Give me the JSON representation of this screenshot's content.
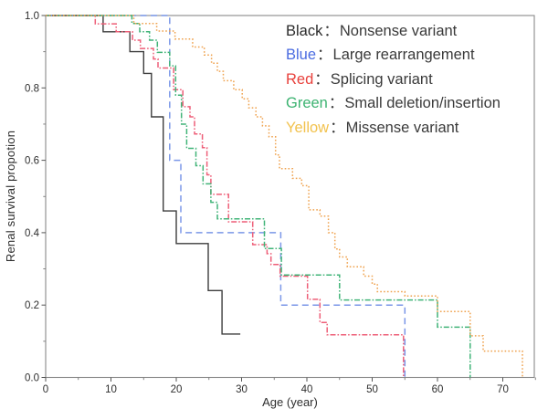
{
  "chart_data": {
    "type": "line",
    "subtype": "kaplan-meier-step",
    "title": "",
    "xlabel": "Age (year)",
    "ylabel": "Renal survival propotion",
    "xlim": [
      0,
      75
    ],
    "ylim": [
      0.0,
      1.0
    ],
    "x_ticks": [
      0,
      10,
      20,
      30,
      40,
      50,
      60,
      70
    ],
    "x_minor_step": 5,
    "y_ticks": [
      "0.0",
      "0.2",
      "0.4",
      "0.6",
      "0.8",
      "1.0"
    ],
    "y_minor_step": 0.1,
    "grid": false,
    "legend_position": "top-right-inside",
    "frame_color": "#8a8a8a",
    "tick_label_color": "#2e2e2e",
    "series": [
      {
        "name": "Nonsense variant",
        "color_name": "Black",
        "color": "#3d3d3d",
        "line_style": "solid",
        "steps": [
          [
            8.8,
            0.955
          ],
          [
            12.9,
            0.9
          ],
          [
            15.0,
            0.84
          ],
          [
            16.2,
            0.72
          ],
          [
            18.0,
            0.46
          ],
          [
            20.0,
            0.37
          ],
          [
            24.9,
            0.24
          ],
          [
            27.0,
            0.12
          ]
        ],
        "end_age": 29.8,
        "end_survival": 0.12
      },
      {
        "name": "Large rearrangement",
        "color_name": "Blue",
        "color": "#7b97e8",
        "line_style": "dashed",
        "steps": [
          [
            19.0,
            0.6
          ],
          [
            20.7,
            0.4
          ],
          [
            36.0,
            0.2
          ],
          [
            55.0,
            0.0
          ]
        ],
        "end_age": 55.0,
        "end_survival": 0.0
      },
      {
        "name": "Splicing variant",
        "color_name": "Red",
        "color": "#ee5f78",
        "line_style": "dash-dot",
        "steps": [
          [
            7.6,
            0.977
          ],
          [
            10.8,
            0.955
          ],
          [
            13.3,
            0.932
          ],
          [
            14.5,
            0.909
          ],
          [
            16.5,
            0.88
          ],
          [
            17.2,
            0.855
          ],
          [
            19.6,
            0.795
          ],
          [
            21.0,
            0.748
          ],
          [
            22.1,
            0.72
          ],
          [
            22.8,
            0.673
          ],
          [
            24.0,
            0.635
          ],
          [
            24.7,
            0.56
          ],
          [
            25.3,
            0.506
          ],
          [
            28.0,
            0.43
          ],
          [
            31.7,
            0.367
          ],
          [
            33.9,
            0.342
          ],
          [
            34.5,
            0.312
          ],
          [
            35.9,
            0.28
          ],
          [
            40.1,
            0.216
          ],
          [
            42.0,
            0.152
          ],
          [
            43.1,
            0.118
          ],
          [
            54.8,
            0.0
          ]
        ],
        "end_age": 54.8,
        "end_survival": 0.0
      },
      {
        "name": "Small deletion/insertion",
        "color_name": "Green",
        "color": "#41b478",
        "line_style": "dash-dot",
        "steps": [
          [
            13.2,
            0.978
          ],
          [
            14.4,
            0.955
          ],
          [
            15.9,
            0.932
          ],
          [
            17.1,
            0.898
          ],
          [
            19.0,
            0.861
          ],
          [
            19.9,
            0.78
          ],
          [
            20.8,
            0.7
          ],
          [
            21.6,
            0.633
          ],
          [
            23.0,
            0.585
          ],
          [
            24.1,
            0.535
          ],
          [
            25.3,
            0.484
          ],
          [
            26.3,
            0.438
          ],
          [
            33.5,
            0.356
          ],
          [
            36.1,
            0.283
          ],
          [
            45.0,
            0.214
          ],
          [
            60.0,
            0.139
          ],
          [
            65.0,
            0.0
          ]
        ],
        "end_age": 65.0,
        "end_survival": 0.0
      },
      {
        "name": "Missense variant",
        "color_name": "Yellow",
        "color": "#efa24e",
        "line_style": "dotted",
        "steps": [
          [
            13.5,
            0.978
          ],
          [
            17.0,
            0.957
          ],
          [
            19.8,
            0.935
          ],
          [
            22.5,
            0.913
          ],
          [
            24.3,
            0.891
          ],
          [
            25.4,
            0.868
          ],
          [
            26.3,
            0.846
          ],
          [
            27.2,
            0.82
          ],
          [
            28.8,
            0.795
          ],
          [
            30.1,
            0.77
          ],
          [
            31.1,
            0.745
          ],
          [
            32.2,
            0.72
          ],
          [
            33.2,
            0.695
          ],
          [
            34.2,
            0.665
          ],
          [
            35.2,
            0.615
          ],
          [
            35.8,
            0.577
          ],
          [
            37.8,
            0.55
          ],
          [
            39.2,
            0.53
          ],
          [
            40.3,
            0.463
          ],
          [
            42.0,
            0.446
          ],
          [
            43.3,
            0.4
          ],
          [
            44.3,
            0.355
          ],
          [
            45.0,
            0.333
          ],
          [
            46.2,
            0.306
          ],
          [
            48.7,
            0.28
          ],
          [
            50.0,
            0.258
          ],
          [
            50.8,
            0.237
          ],
          [
            55.0,
            0.225
          ],
          [
            60.0,
            0.182
          ],
          [
            65.0,
            0.115
          ],
          [
            67.0,
            0.073
          ],
          [
            73.0,
            0.0
          ]
        ],
        "end_age": 73.0,
        "end_survival": 0.0
      }
    ]
  },
  "legend": {
    "separator": "：",
    "items": [
      {
        "color_name": "Black",
        "color": "#2b2b2b",
        "label": "Nonsense variant"
      },
      {
        "color_name": "Blue",
        "color": "#4a6be0",
        "label": "Large rearrangement"
      },
      {
        "color_name": "Red",
        "color": "#e8413c",
        "label": "Splicing variant"
      },
      {
        "color_name": "Green",
        "color": "#3cb371",
        "label": "Small deletion/insertion"
      },
      {
        "color_name": "Yellow",
        "color": "#f2c24e",
        "label": "Missense variant"
      }
    ]
  }
}
